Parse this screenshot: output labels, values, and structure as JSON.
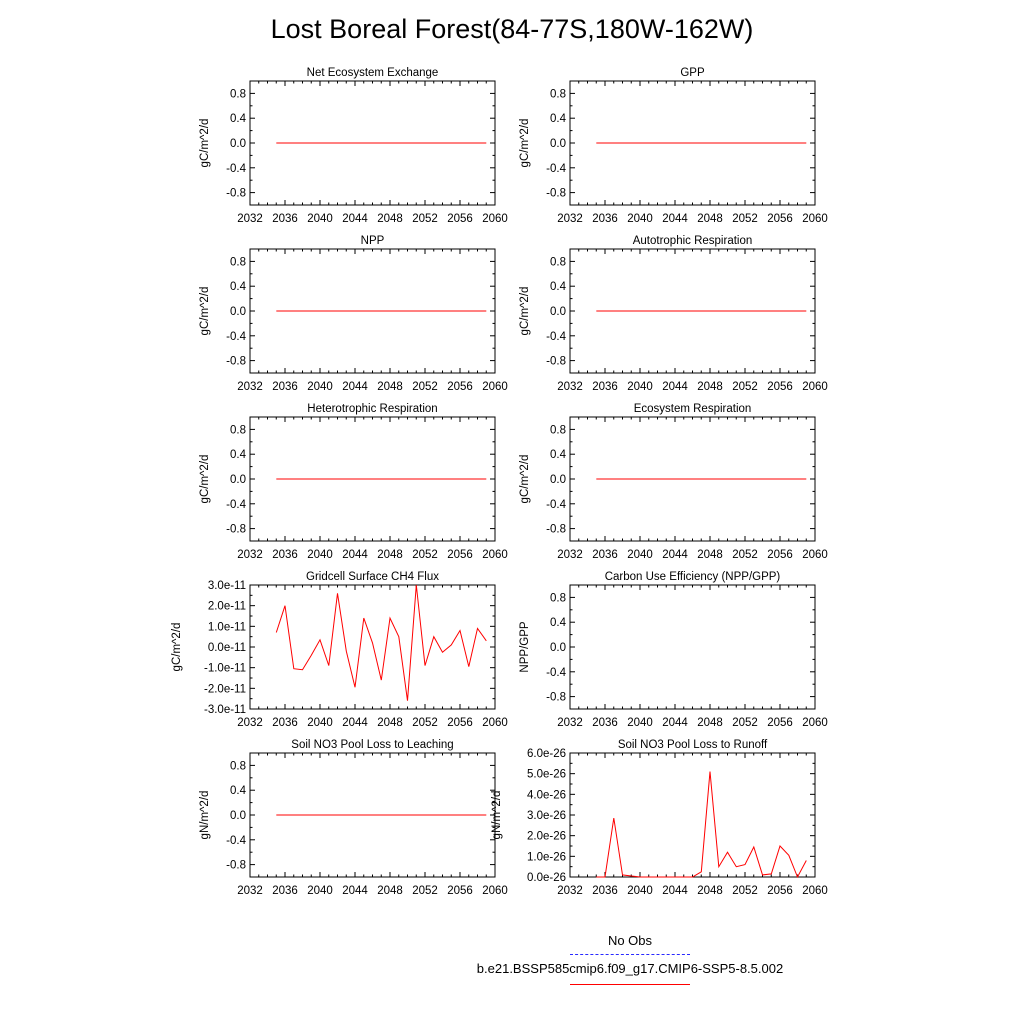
{
  "title": "Lost Boreal Forest(84-77S,180W-162W)",
  "legend": {
    "obs_label": "No Obs",
    "case_label": "b.e21.BSSP585cmip6.f09_g17.CMIP6-SSP5-8.5.002",
    "obs_color": "#2a2aff",
    "case_color": "#ff0000"
  },
  "chart_data": [
    {
      "type": "line",
      "title": "Net Ecosystem Exchange",
      "ylabel": "gC/m^2/d",
      "xlim": [
        2032,
        2060
      ],
      "ylim": [
        -1,
        1
      ],
      "xticks": [
        "2032",
        "2036",
        "2040",
        "2044",
        "2048",
        "2052",
        "2056",
        "2060"
      ],
      "yticks": [
        "0.8",
        "0.4",
        "0.0",
        "-0.4",
        "-0.8"
      ],
      "series": [
        {
          "x": [
            2035,
            2059
          ],
          "y": [
            0,
            0
          ]
        }
      ]
    },
    {
      "type": "line",
      "title": "GPP",
      "ylabel": "gC/m^2/d",
      "xlim": [
        2032,
        2060
      ],
      "ylim": [
        -1,
        1
      ],
      "xticks": [
        "2032",
        "2036",
        "2040",
        "2044",
        "2048",
        "2052",
        "2056",
        "2060"
      ],
      "yticks": [
        "0.8",
        "0.4",
        "0.0",
        "-0.4",
        "-0.8"
      ],
      "series": [
        {
          "x": [
            2035,
            2059
          ],
          "y": [
            0,
            0
          ]
        }
      ]
    },
    {
      "type": "line",
      "title": "NPP",
      "ylabel": "gC/m^2/d",
      "xlim": [
        2032,
        2060
      ],
      "ylim": [
        -1,
        1
      ],
      "xticks": [
        "2032",
        "2036",
        "2040",
        "2044",
        "2048",
        "2052",
        "2056",
        "2060"
      ],
      "yticks": [
        "0.8",
        "0.4",
        "0.0",
        "-0.4",
        "-0.8"
      ],
      "series": [
        {
          "x": [
            2035,
            2059
          ],
          "y": [
            0,
            0
          ]
        }
      ]
    },
    {
      "type": "line",
      "title": "Autotrophic Respiration",
      "ylabel": "gC/m^2/d",
      "xlim": [
        2032,
        2060
      ],
      "ylim": [
        -1,
        1
      ],
      "xticks": [
        "2032",
        "2036",
        "2040",
        "2044",
        "2048",
        "2052",
        "2056",
        "2060"
      ],
      "yticks": [
        "0.8",
        "0.4",
        "0.0",
        "-0.4",
        "-0.8"
      ],
      "series": [
        {
          "x": [
            2035,
            2059
          ],
          "y": [
            0,
            0
          ]
        }
      ]
    },
    {
      "type": "line",
      "title": "Heterotrophic Respiration",
      "ylabel": "gC/m^2/d",
      "xlim": [
        2032,
        2060
      ],
      "ylim": [
        -1,
        1
      ],
      "xticks": [
        "2032",
        "2036",
        "2040",
        "2044",
        "2048",
        "2052",
        "2056",
        "2060"
      ],
      "yticks": [
        "0.8",
        "0.4",
        "0.0",
        "-0.4",
        "-0.8"
      ],
      "series": [
        {
          "x": [
            2035,
            2059
          ],
          "y": [
            0,
            0
          ]
        }
      ]
    },
    {
      "type": "line",
      "title": "Ecosystem Respiration",
      "ylabel": "gC/m^2/d",
      "xlim": [
        2032,
        2060
      ],
      "ylim": [
        -1,
        1
      ],
      "xticks": [
        "2032",
        "2036",
        "2040",
        "2044",
        "2048",
        "2052",
        "2056",
        "2060"
      ],
      "yticks": [
        "0.8",
        "0.4",
        "0.0",
        "-0.4",
        "-0.8"
      ],
      "series": [
        {
          "x": [
            2035,
            2059
          ],
          "y": [
            0,
            0
          ]
        }
      ]
    },
    {
      "type": "line",
      "title": "Gridcell Surface CH4 Flux",
      "ylabel": "gC/m^2/d",
      "xlim": [
        2032,
        2060
      ],
      "ylim": [
        -3e-11,
        3e-11
      ],
      "xticks": [
        "2032",
        "2036",
        "2040",
        "2044",
        "2048",
        "2052",
        "2056",
        "2060"
      ],
      "yticks": [
        "3.0e-11",
        "2.0e-11",
        "1.0e-11",
        "0.0e-11",
        "-1.0e-11",
        "-2.0e-11",
        "-3.0e-11"
      ],
      "series": [
        {
          "x": [
            2035,
            2036,
            2037,
            2038,
            2039,
            2040,
            2041,
            2042,
            2043,
            2044,
            2045,
            2046,
            2047,
            2048,
            2049,
            2050,
            2051,
            2052,
            2053,
            2054,
            2055,
            2056,
            2057,
            2058,
            2059
          ],
          "y": [
            7e-12,
            2e-11,
            -1.05e-11,
            -1.1e-11,
            -4e-12,
            3.5e-12,
            -9e-12,
            2.6e-11,
            -2e-12,
            -1.95e-11,
            1.4e-11,
            2e-12,
            -1.6e-11,
            1.4e-11,
            5e-12,
            -2.6e-11,
            3e-11,
            -9e-12,
            5e-12,
            -2.5e-12,
            1e-12,
            8e-12,
            -9.5e-12,
            9e-12,
            3e-12
          ]
        }
      ]
    },
    {
      "type": "line",
      "title": "Carbon Use Efficiency (NPP/GPP)",
      "ylabel": "NPP/GPP",
      "xlim": [
        2032,
        2060
      ],
      "ylim": [
        -1,
        1
      ],
      "xticks": [
        "2032",
        "2036",
        "2040",
        "2044",
        "2048",
        "2052",
        "2056",
        "2060"
      ],
      "yticks": [
        "0.8",
        "0.4",
        "0.0",
        "-0.4",
        "-0.8"
      ],
      "series": []
    },
    {
      "type": "line",
      "title": "Soil NO3 Pool Loss to Leaching",
      "ylabel": "gN/m^2/d",
      "xlim": [
        2032,
        2060
      ],
      "ylim": [
        -1,
        1
      ],
      "xticks": [
        "2032",
        "2036",
        "2040",
        "2044",
        "2048",
        "2052",
        "2056",
        "2060"
      ],
      "yticks": [
        "0.8",
        "0.4",
        "0.0",
        "-0.4",
        "-0.8"
      ],
      "series": [
        {
          "x": [
            2035,
            2059
          ],
          "y": [
            0,
            0
          ]
        }
      ]
    },
    {
      "type": "line",
      "title": "Soil NO3 Pool Loss to Runoff",
      "ylabel": "gN/m^2/d",
      "xlim": [
        2032,
        2060
      ],
      "ylim": [
        0,
        6e-26
      ],
      "xticks": [
        "2032",
        "2036",
        "2040",
        "2044",
        "2048",
        "2052",
        "2056",
        "2060"
      ],
      "yticks": [
        "6.0e-26",
        "5.0e-26",
        "4.0e-26",
        "3.0e-26",
        "2.0e-26",
        "1.0e-26",
        "0.0e-26"
      ],
      "series": [
        {
          "x": [
            2035,
            2036,
            2037,
            2038,
            2039,
            2040,
            2041,
            2042,
            2043,
            2044,
            2045,
            2046,
            2047,
            2048,
            2049,
            2050,
            2051,
            2052,
            2053,
            2054,
            2055,
            2056,
            2057,
            2058,
            2059
          ],
          "y": [
            0,
            0,
            2.85e-26,
            1e-27,
            5e-28,
            0,
            0,
            0,
            0,
            0,
            0,
            0,
            2.5e-27,
            5.1e-26,
            5e-27,
            1.2e-26,
            5e-27,
            6e-27,
            1.45e-26,
            1e-27,
            1.5e-27,
            1.5e-26,
            1.05e-26,
            0,
            8e-27
          ]
        }
      ]
    }
  ]
}
